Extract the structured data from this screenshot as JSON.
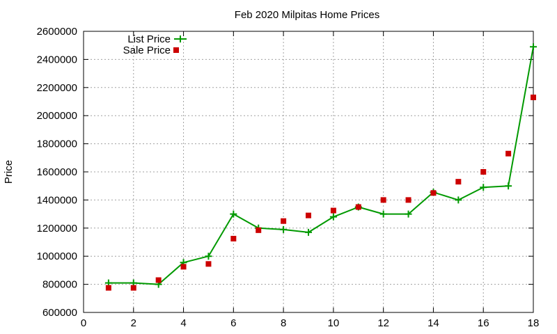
{
  "chart_data": {
    "type": "line",
    "title": "Feb 2020 Milpitas Home Prices",
    "xlabel": "",
    "ylabel": "Price",
    "xlim": [
      0,
      18
    ],
    "ylim": [
      600000,
      2600000
    ],
    "xticks": [
      0,
      2,
      4,
      6,
      8,
      10,
      12,
      14,
      16,
      18
    ],
    "yticks": [
      600000,
      800000,
      1000000,
      1200000,
      1400000,
      1600000,
      1800000,
      2000000,
      2200000,
      2400000,
      2600000
    ],
    "grid": true,
    "legend_position": "top-left",
    "series": [
      {
        "name": "List Price",
        "style": "line-with-plus-markers",
        "color": "#009900",
        "x": [
          1,
          2,
          3,
          4,
          5,
          6,
          7,
          8,
          9,
          10,
          11,
          12,
          13,
          14,
          15,
          16,
          17,
          18
        ],
        "y": [
          810000,
          810000,
          800000,
          955000,
          1000000,
          1300000,
          1200000,
          1190000,
          1170000,
          1280000,
          1350000,
          1300000,
          1300000,
          1455000,
          1400000,
          1490000,
          1500000,
          2490000
        ]
      },
      {
        "name": "Sale Price",
        "style": "square-points",
        "color": "#cc0000",
        "x": [
          1,
          2,
          3,
          4,
          5,
          6,
          7,
          8,
          9,
          10,
          11,
          12,
          13,
          14,
          15,
          16,
          17,
          18
        ],
        "y": [
          775000,
          775000,
          830000,
          925000,
          945000,
          1125000,
          1185000,
          1250000,
          1290000,
          1325000,
          1350000,
          1400000,
          1400000,
          1450000,
          1530000,
          1600000,
          1730000,
          2130000
        ]
      }
    ]
  }
}
